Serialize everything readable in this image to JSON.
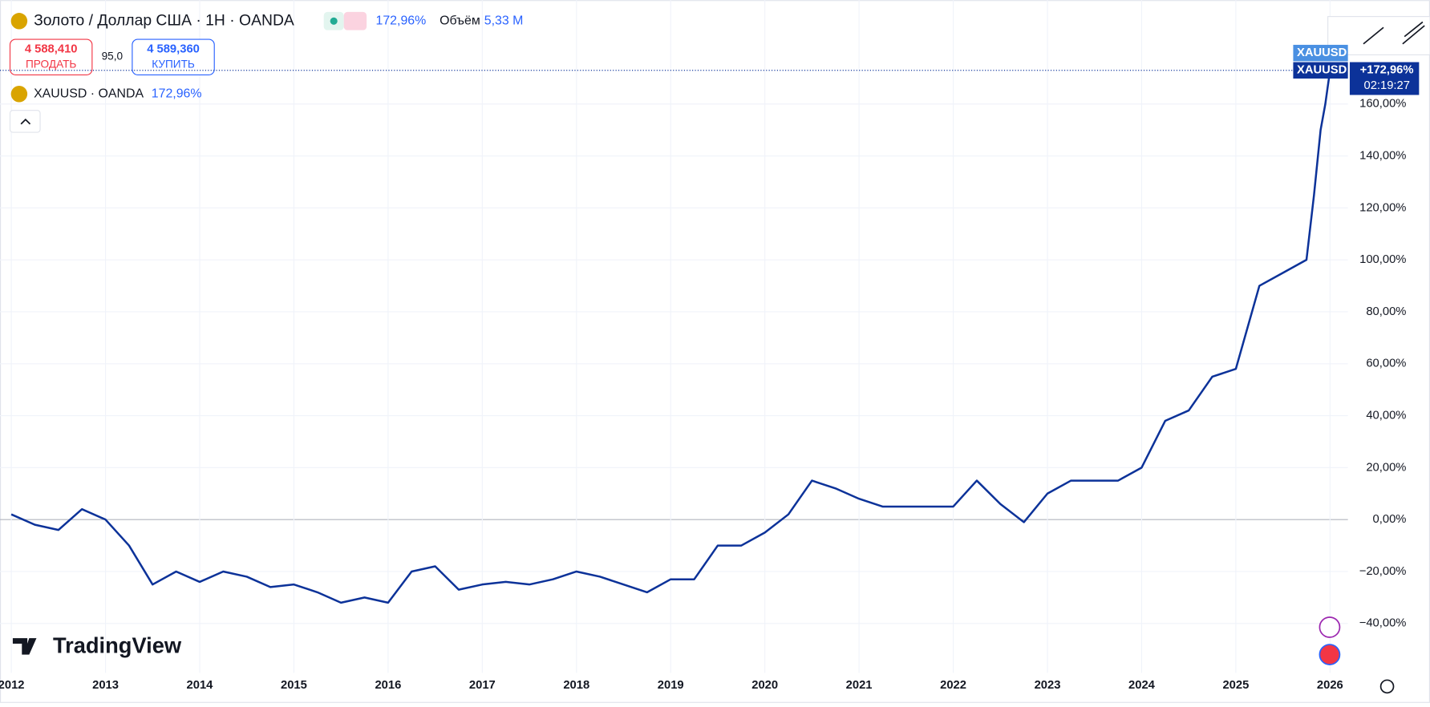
{
  "ui": {
    "symbol_title": "Золото / Доллар США · 1H · OANDA",
    "change": "172,96%",
    "volume_label": "Объём",
    "volume": "5,33 M",
    "sell_price": "4 588,410",
    "sell_label": "ПРОДАТЬ",
    "spread": "95,0",
    "buy_price": "4 589,360",
    "buy_label": "КУПИТЬ",
    "legend_symbol": "XAUUSD · OANDA",
    "legend_change": "172,96%",
    "logo": "TradingView",
    "tag_symbol": "XAUUSD",
    "tag_symbol_2": "XAUUSD",
    "last_label": "+172,96%",
    "countdown": "02:19:27"
  },
  "chart_data": {
    "type": "line",
    "x": [
      2012.0,
      2012.25,
      2012.5,
      2012.75,
      2013.0,
      2013.25,
      2013.5,
      2013.75,
      2014.0,
      2014.25,
      2014.5,
      2014.75,
      2015.0,
      2015.25,
      2015.5,
      2015.75,
      2016.0,
      2016.25,
      2016.5,
      2016.75,
      2017.0,
      2017.25,
      2017.5,
      2017.75,
      2018.0,
      2018.25,
      2018.5,
      2018.75,
      2019.0,
      2019.25,
      2019.5,
      2019.75,
      2020.0,
      2020.25,
      2020.5,
      2020.75,
      2021.0,
      2021.25,
      2021.5,
      2021.75,
      2022.0,
      2022.25,
      2022.5,
      2022.75,
      2023.0,
      2023.25,
      2023.5,
      2023.75,
      2024.0,
      2024.25,
      2024.5,
      2024.75,
      2025.0,
      2025.25,
      2025.5,
      2025.75,
      2025.83,
      2025.9,
      2025.95,
      2026.0
    ],
    "series": [
      {
        "name": "XAUUSD",
        "color": "#0c3299",
        "values": [
          2,
          -2,
          -4,
          4,
          0,
          -10,
          -25,
          -20,
          -24,
          -20,
          -22,
          -26,
          -25,
          -28,
          -32,
          -30,
          -32,
          -20,
          -18,
          -27,
          -25,
          -24,
          -25,
          -23,
          -20,
          -22,
          -25,
          -28,
          -23,
          -23,
          -10,
          -10,
          -5,
          2,
          15,
          12,
          8,
          5,
          5,
          5,
          5,
          15,
          6,
          -1,
          10,
          15,
          15,
          15,
          20,
          38,
          42,
          55,
          58,
          90,
          95,
          100,
          125,
          150,
          160,
          172.96
        ]
      }
    ],
    "xlim": [
      2011.88,
      2026.19
    ],
    "ylim": [
      -59,
      200
    ],
    "xticks": [
      2012,
      2013,
      2014,
      2015,
      2016,
      2017,
      2018,
      2019,
      2020,
      2021,
      2022,
      2023,
      2024,
      2025,
      2026
    ],
    "yticks": [
      {
        "value": -40,
        "label": "−40,00%"
      },
      {
        "value": -20,
        "label": "−20,00%"
      },
      {
        "value": 0,
        "label": "0,00%"
      },
      {
        "value": 20,
        "label": "20,00%"
      },
      {
        "value": 40,
        "label": "40,00%"
      },
      {
        "value": 60,
        "label": "60,00%"
      },
      {
        "value": 80,
        "label": "80,00%"
      },
      {
        "value": 100,
        "label": "100,00%"
      },
      {
        "value": 120,
        "label": "120,00%"
      },
      {
        "value": 140,
        "label": "140,00%"
      },
      {
        "value": 160,
        "label": "160,00%"
      }
    ],
    "grid": true
  }
}
